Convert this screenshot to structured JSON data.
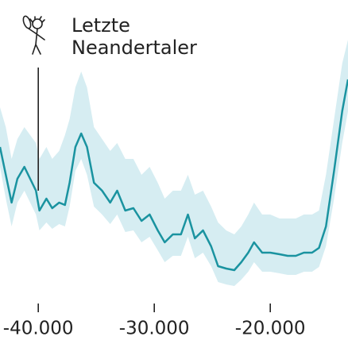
{
  "chart_data": {
    "type": "line",
    "annotation": {
      "text": [
        "Letzte",
        "Neandertaler"
      ],
      "x": -40000
    },
    "x": [
      -43300,
      -42800,
      -42300,
      -41800,
      -41200,
      -40700,
      -40200,
      -39900,
      -39300,
      -38800,
      -38200,
      -37700,
      -37300,
      -36800,
      -36300,
      -35800,
      -35200,
      -34500,
      -33800,
      -33200,
      -32500,
      -31800,
      -31100,
      -30400,
      -29700,
      -29100,
      -28400,
      -27700,
      -27100,
      -26500,
      -25800,
      -25100,
      -24500,
      -23800,
      -23100,
      -22500,
      -21900,
      -21400,
      -20700,
      -20000,
      -19200,
      -18500,
      -17800,
      -17100,
      -16400,
      -15800,
      -15200,
      -14500,
      -13800,
      -13300
    ],
    "series": [
      {
        "color": "#1a93a0",
        "band_color": "#d6edf2",
        "values": [
          165,
          130,
          95,
          125,
          140,
          125,
          110,
          85,
          100,
          88,
          95,
          92,
          120,
          165,
          182,
          165,
          120,
          110,
          95,
          110,
          85,
          88,
          72,
          80,
          60,
          45,
          55,
          55,
          80,
          50,
          60,
          40,
          15,
          12,
          10,
          20,
          32,
          45,
          32,
          32,
          30,
          28,
          28,
          32,
          32,
          38,
          65,
          135,
          210,
          250
        ],
        "upper": [
          215,
          190,
          150,
          175,
          190,
          180,
          170,
          150,
          165,
          150,
          160,
          180,
          200,
          240,
          260,
          240,
          190,
          175,
          160,
          170,
          150,
          150,
          130,
          140,
          120,
          100,
          110,
          110,
          130,
          105,
          110,
          90,
          70,
          60,
          55,
          65,
          80,
          95,
          80,
          80,
          75,
          75,
          75,
          80,
          80,
          85,
          130,
          200,
          270,
          300
        ],
        "lower": [
          140,
          100,
          65,
          95,
          110,
          95,
          80,
          60,
          70,
          62,
          68,
          65,
          90,
          135,
          150,
          130,
          90,
          80,
          68,
          80,
          58,
          60,
          45,
          52,
          35,
          20,
          28,
          28,
          52,
          25,
          32,
          15,
          -5,
          -8,
          -10,
          -2,
          8,
          20,
          8,
          8,
          6,
          4,
          4,
          8,
          8,
          14,
          40,
          100,
          170,
          210
        ]
      }
    ],
    "xlim": [
      -43300,
      -13300
    ],
    "ylim": [
      -20,
      300
    ],
    "xticks": [
      {
        "value": -40000,
        "label": "-40.000"
      },
      {
        "value": -30000,
        "label": "-30.000"
      },
      {
        "value": -20000,
        "label": "-20.000"
      }
    ]
  }
}
